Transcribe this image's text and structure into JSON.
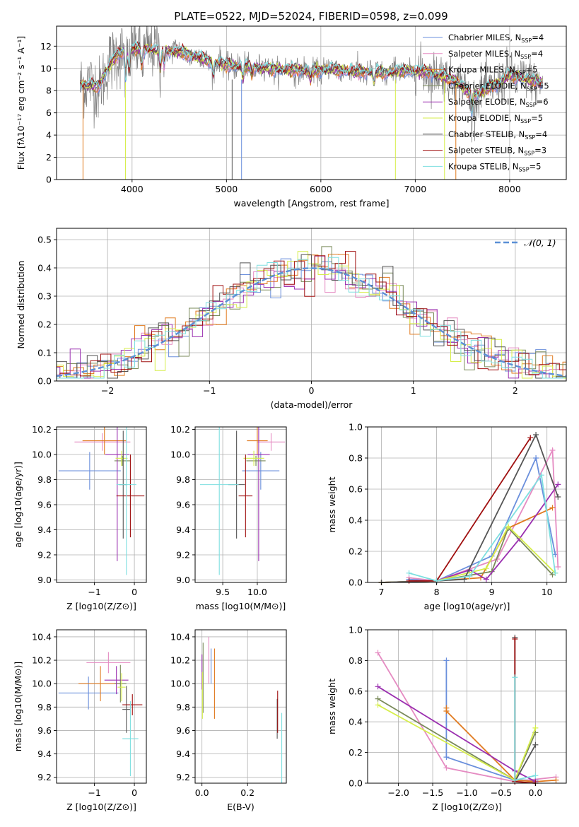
{
  "figure": {
    "title": "PLATE=0522, MJD=52024, FIBERID=0598, z=0.099"
  },
  "colors": {
    "Chabrier MILES": "#6a8fdc",
    "Salpeter MILES": "#e58bc2",
    "Kroupa MILES": "#e07a1f",
    "Chabrier ELODIE": "#7a8a5a",
    "Salpeter ELODIE": "#9b30b0",
    "Kroupa ELODIE": "#d6ee4a",
    "Chabrier STELIB": "#555555",
    "Salpeter STELIB": "#a01010",
    "Kroupa STELIB": "#7edfe0",
    "data": "#808080",
    "gauss": "#5b8fd6"
  },
  "chart_data": [
    {
      "id": "spectrum",
      "type": "line",
      "title": "PLATE=0522, MJD=52024, FIBERID=0598, z=0.099",
      "xlabel": "wavelength [Angstrom, rest frame]",
      "ylabel": "Flux [fλ10⁻¹⁷ erg cm⁻² s⁻¹ A⁻¹]",
      "xlim": [
        3200,
        8600
      ],
      "ylim": [
        0,
        13.8
      ],
      "xticks": [
        4000,
        5000,
        6000,
        7000,
        8000
      ],
      "yticks": [
        0,
        2,
        4,
        6,
        8,
        10,
        12
      ],
      "legend": [
        {
          "label": "Chabrier MILES, N",
          "sub": "SSP",
          "tail": "=4"
        },
        {
          "label": "Salpeter MILES, N",
          "sub": "SSP",
          "tail": "=4"
        },
        {
          "label": "Kroupa MILES, N",
          "sub": "SSP",
          "tail": "=5"
        },
        {
          "label": "Chabrier ELODIE, N",
          "sub": "SSP",
          "tail": "=5"
        },
        {
          "label": "Salpeter ELODIE, N",
          "sub": "SSP",
          "tail": "=6"
        },
        {
          "label": "Kroupa ELODIE, N",
          "sub": "SSP",
          "tail": "=5"
        },
        {
          "label": "Chabrier STELIB, N",
          "sub": "SSP",
          "tail": "=4"
        },
        {
          "label": "Salpeter STELIB, N",
          "sub": "SSP",
          "tail": "=3"
        },
        {
          "label": "Kroupa STELIB, N",
          "sub": "SSP",
          "tail": "=5"
        }
      ],
      "continuum": [
        [
          3450,
          8.6
        ],
        [
          3650,
          8.4
        ],
        [
          3750,
          10.2
        ],
        [
          3850,
          11.3
        ],
        [
          4000,
          11.8
        ],
        [
          4300,
          11.6
        ],
        [
          4500,
          11.5
        ],
        [
          4700,
          11.0
        ],
        [
          4850,
          10.6
        ],
        [
          5000,
          10.3
        ],
        [
          5300,
          10.1
        ],
        [
          5600,
          9.9
        ],
        [
          5900,
          9.8
        ],
        [
          6100,
          9.9
        ],
        [
          6400,
          9.7
        ],
        [
          6700,
          9.6
        ],
        [
          6900,
          9.8
        ],
        [
          7100,
          9.7
        ],
        [
          7300,
          9.3
        ],
        [
          7450,
          8.8
        ],
        [
          7600,
          7.5
        ],
        [
          7800,
          8.3
        ],
        [
          8000,
          9.4
        ],
        [
          8200,
          9.0
        ],
        [
          8350,
          8.7
        ]
      ]
    },
    {
      "id": "residuals",
      "type": "line",
      "xlabel": "(data-model)/error",
      "ylabel": "Normed distribution",
      "xlim": [
        -2.5,
        2.5
      ],
      "ylim": [
        0,
        0.54
      ],
      "xticks": [
        -2,
        -1,
        0,
        1,
        2
      ],
      "yticks": [
        0.0,
        0.1,
        0.2,
        0.3,
        0.4,
        0.5
      ],
      "legend": "𝒩(0, 1)",
      "gaussian": {
        "mean": 0,
        "sigma": 1
      }
    },
    {
      "id": "age-vs-Z",
      "type": "scatter",
      "xlabel": "Z [log10(Z/Z⊙)]",
      "ylabel": "age  [log10(age/yr)]",
      "xlim": [
        -1.95,
        0.3
      ],
      "ylim": [
        8.98,
        10.22
      ],
      "xticks": [
        -1,
        0
      ],
      "yticks": [
        9.0,
        9.2,
        9.4,
        9.6,
        9.8,
        10.0,
        10.2
      ],
      "points": [
        {
          "model": "Chabrier MILES",
          "x": -1.12,
          "y": 9.87,
          "xerr": 0.78,
          "yerr": 0.15
        },
        {
          "model": "Salpeter MILES",
          "x": -0.8,
          "y": 10.1,
          "xerr": 0.7,
          "yerr": 0.07
        },
        {
          "model": "Kroupa MILES",
          "x": -0.75,
          "y": 10.11,
          "xerr": 0.55,
          "yerr": 0.11
        },
        {
          "model": "Chabrier ELODIE",
          "x": -0.3,
          "y": 9.95,
          "xerr": 0.2,
          "yerr": 0.04
        },
        {
          "model": "Salpeter ELODIE",
          "x": -0.43,
          "y": 10.0,
          "xerr": 0.3,
          "yerr": 0.85
        },
        {
          "model": "Kroupa ELODIE",
          "x": -0.32,
          "y": 9.97,
          "xerr": 0.15,
          "yerr": 0.06
        },
        {
          "model": "Chabrier STELIB",
          "x": -0.28,
          "y": 9.76,
          "xerr": 0.1,
          "yerr": 0.43
        },
        {
          "model": "Salpeter STELIB",
          "x": -0.1,
          "y": 9.67,
          "xerr": 0.35,
          "yerr": 0.33
        },
        {
          "model": "Kroupa STELIB",
          "x": -0.2,
          "y": 9.76,
          "xerr": 0.25,
          "yerr": 0.72
        }
      ]
    },
    {
      "id": "age-vs-mass",
      "type": "scatter",
      "xlabel": "mass [log10(M/M⊙)]",
      "ylabel": "",
      "xlim": [
        9.1,
        10.42
      ],
      "ylim": [
        8.98,
        10.22
      ],
      "xticks": [
        9.5,
        10.0
      ],
      "yticks": [
        9.0,
        9.2,
        9.4,
        9.6,
        9.8,
        10.0,
        10.2
      ],
      "points": [
        {
          "model": "Chabrier MILES",
          "x": 10.05,
          "y": 9.87,
          "xerr": 0.27,
          "yerr": 0.15
        },
        {
          "model": "Salpeter MILES",
          "x": 10.2,
          "y": 10.1,
          "xerr": 0.2,
          "yerr": 0.07
        },
        {
          "model": "Kroupa MILES",
          "x": 10.0,
          "y": 10.11,
          "xerr": 0.15,
          "yerr": 0.11
        },
        {
          "model": "Chabrier ELODIE",
          "x": 9.98,
          "y": 9.95,
          "xerr": 0.14,
          "yerr": 0.04
        },
        {
          "model": "Salpeter ELODIE",
          "x": 10.02,
          "y": 10.0,
          "xerr": 0.16,
          "yerr": 0.85
        },
        {
          "model": "Kroupa ELODIE",
          "x": 9.95,
          "y": 9.97,
          "xerr": 0.15,
          "yerr": 0.06
        },
        {
          "model": "Chabrier STELIB",
          "x": 9.7,
          "y": 9.76,
          "xerr": 0.12,
          "yerr": 0.43
        },
        {
          "model": "Salpeter STELIB",
          "x": 9.83,
          "y": 9.67,
          "xerr": 0.1,
          "yerr": 0.33
        },
        {
          "model": "Kroupa STELIB",
          "x": 9.45,
          "y": 9.76,
          "xerr": 0.28,
          "yerr": 0.72
        }
      ]
    },
    {
      "id": "weight-vs-age",
      "type": "line",
      "xlabel": "age  [log10(age/yr)]",
      "ylabel": "mass weight",
      "xlim": [
        6.75,
        10.35
      ],
      "ylim": [
        0,
        1.0
      ],
      "xticks": [
        7,
        8,
        9,
        10
      ],
      "yticks": [
        0.0,
        0.2,
        0.4,
        0.6,
        0.8,
        1.0
      ],
      "series": [
        {
          "model": "Chabrier MILES",
          "x": [
            7.5,
            8.0,
            9.0,
            9.8,
            10.15
          ],
          "y": [
            0.02,
            0.01,
            0.17,
            0.8,
            0.18
          ]
        },
        {
          "model": "Salpeter MILES",
          "x": [
            7.5,
            8.0,
            9.1,
            10.1,
            10.2
          ],
          "y": [
            0.03,
            0.01,
            0.15,
            0.85,
            0.1
          ]
        },
        {
          "model": "Kroupa MILES",
          "x": [
            7.0,
            8.0,
            8.8,
            9.3,
            10.1
          ],
          "y": [
            0.0,
            0.01,
            0.03,
            0.35,
            0.48
          ]
        },
        {
          "model": "Chabrier ELODIE",
          "x": [
            7.0,
            8.0,
            9.0,
            9.3,
            10.1
          ],
          "y": [
            0.0,
            0.01,
            0.07,
            0.35,
            0.05
          ]
        },
        {
          "model": "Salpeter ELODIE",
          "x": [
            7.0,
            8.0,
            8.6,
            8.9,
            9.5,
            10.2
          ],
          "y": [
            0.0,
            0.01,
            0.08,
            0.02,
            0.28,
            0.63
          ]
        },
        {
          "model": "Kroupa ELODIE",
          "x": [
            7.0,
            8.0,
            8.9,
            9.3,
            10.15
          ],
          "y": [
            0.0,
            0.01,
            0.09,
            0.36,
            0.06
          ]
        },
        {
          "model": "Chabrier STELIB",
          "x": [
            7.0,
            8.0,
            8.5,
            9.8,
            10.2
          ],
          "y": [
            0.0,
            0.01,
            0.02,
            0.95,
            0.55
          ]
        },
        {
          "model": "Salpeter STELIB",
          "x": [
            7.5,
            8.0,
            9.7
          ],
          "y": [
            0.01,
            0.01,
            0.93
          ]
        },
        {
          "model": "Kroupa STELIB",
          "x": [
            7.5,
            8.0,
            8.6,
            9.9,
            10.15
          ],
          "y": [
            0.06,
            0.01,
            0.04,
            0.69,
            0.06
          ]
        }
      ]
    },
    {
      "id": "mass-vs-Z",
      "type": "scatter",
      "xlabel": "Z [log10(Z/Z⊙)]",
      "ylabel": "mass [log10(M/M⊙)]",
      "xlim": [
        -1.95,
        0.3
      ],
      "ylim": [
        9.15,
        10.46
      ],
      "xticks": [
        -1,
        0
      ],
      "yticks": [
        9.2,
        9.4,
        9.6,
        9.8,
        10.0,
        10.2,
        10.4
      ],
      "points": [
        {
          "model": "Chabrier MILES",
          "x": -1.15,
          "y": 9.92,
          "xerr": 0.75,
          "yerr": 0.14
        },
        {
          "model": "Salpeter MILES",
          "x": -0.65,
          "y": 10.18,
          "xerr": 0.55,
          "yerr": 0.09
        },
        {
          "model": "Kroupa MILES",
          "x": -0.85,
          "y": 10.0,
          "xerr": 0.55,
          "yerr": 0.15
        },
        {
          "model": "Chabrier ELODIE",
          "x": -0.35,
          "y": 10.0,
          "xerr": 0.15,
          "yerr": 0.16
        },
        {
          "model": "Salpeter ELODIE",
          "x": -0.45,
          "y": 10.03,
          "xerr": 0.3,
          "yerr": 0.12
        },
        {
          "model": "Kroupa ELODIE",
          "x": -0.32,
          "y": 9.97,
          "xerr": 0.1,
          "yerr": 0.12
        },
        {
          "model": "Chabrier STELIB",
          "x": -0.2,
          "y": 9.78,
          "xerr": 0.1,
          "yerr": 0.2
        },
        {
          "model": "Salpeter STELIB",
          "x": -0.05,
          "y": 9.82,
          "xerr": 0.25,
          "yerr": 0.09
        },
        {
          "model": "Kroupa STELIB",
          "x": -0.1,
          "y": 9.53,
          "xerr": 0.2,
          "yerr": 0.32
        }
      ]
    },
    {
      "id": "mass-vs-EBV",
      "type": "scatter",
      "xlabel": "E(B-V)",
      "ylabel": "",
      "xlim": [
        -0.03,
        0.37
      ],
      "ylim": [
        9.15,
        10.46
      ],
      "xticks": [
        0.0,
        0.2
      ],
      "yticks": [
        9.2,
        9.4,
        9.6,
        9.8,
        10.0,
        10.2,
        10.4
      ],
      "points": [
        {
          "model": "Chabrier MILES",
          "x": 0.04,
          "y": 10.15,
          "yerr": 0.15
        },
        {
          "model": "Salpeter MILES",
          "x": 0.03,
          "y": 10.2,
          "yerr": 0.2
        },
        {
          "model": "Kroupa MILES",
          "x": 0.055,
          "y": 10.0,
          "yerr": 0.3
        },
        {
          "model": "Chabrier ELODIE",
          "x": 0.005,
          "y": 10.05,
          "yerr": 0.3
        },
        {
          "model": "Salpeter ELODIE",
          "x": 0.0,
          "y": 10.1,
          "yerr": 0.15
        },
        {
          "model": "Kroupa ELODIE",
          "x": 0.002,
          "y": 9.9,
          "yerr": 0.2
        },
        {
          "model": "Chabrier STELIB",
          "x": 0.33,
          "y": 9.7,
          "yerr": 0.17
        },
        {
          "model": "Salpeter STELIB",
          "x": 0.332,
          "y": 9.76,
          "yerr": 0.18
        },
        {
          "model": "Kroupa STELIB",
          "x": 0.35,
          "y": 9.45,
          "yerr": 0.3
        }
      ]
    },
    {
      "id": "weight-vs-Z",
      "type": "line",
      "xlabel": "Z [log10(Z/Z⊙)]",
      "ylabel": "mass weight",
      "xlim": [
        -2.45,
        0.45
      ],
      "ylim": [
        0,
        1.0
      ],
      "xticks": [
        -2.0,
        -1.5,
        -1.0,
        -0.5,
        0.0
      ],
      "yticks": [
        0.0,
        0.2,
        0.4,
        0.6,
        0.8,
        1.0
      ],
      "series": [
        {
          "model": "Chabrier MILES",
          "x": [
            -1.3,
            -1.3,
            -0.3,
            0.0
          ],
          "y": [
            0.8,
            0.17,
            0.02,
            0.02
          ]
        },
        {
          "model": "Salpeter MILES",
          "x": [
            -2.3,
            -1.3,
            -0.3,
            0.3
          ],
          "y": [
            0.85,
            0.1,
            0.01,
            0.04
          ]
        },
        {
          "model": "Kroupa MILES",
          "x": [
            -1.3,
            -1.3,
            -0.3,
            0.0,
            0.3
          ],
          "y": [
            0.49,
            0.47,
            0.02,
            0.01,
            0.02
          ]
        },
        {
          "model": "Chabrier ELODIE",
          "x": [
            -2.3,
            -0.3,
            0.0
          ],
          "y": [
            0.55,
            0.02,
            0.33
          ]
        },
        {
          "model": "Salpeter ELODIE",
          "x": [
            -2.3,
            -0.3,
            0.0
          ],
          "y": [
            0.63,
            0.08,
            0.01
          ]
        },
        {
          "model": "Kroupa ELODIE",
          "x": [
            -2.3,
            -0.3,
            0.0
          ],
          "y": [
            0.51,
            0.02,
            0.36
          ]
        },
        {
          "model": "Chabrier STELIB",
          "x": [
            -0.3,
            -0.3,
            0.0
          ],
          "y": [
            0.95,
            0.01,
            0.25
          ]
        },
        {
          "model": "Salpeter STELIB",
          "x": [
            -0.3,
            -0.3,
            0.0
          ],
          "y": [
            0.94,
            0.01,
            0.0
          ]
        },
        {
          "model": "Kroupa STELIB",
          "x": [
            -0.3,
            -0.3,
            0.0
          ],
          "y": [
            0.69,
            0.02,
            0.05
          ]
        }
      ]
    }
  ]
}
